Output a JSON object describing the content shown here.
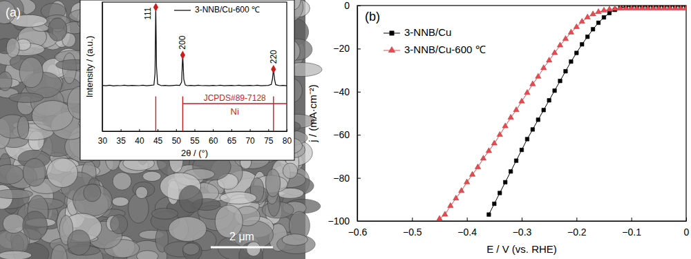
{
  "chart_data": [
    {
      "type": "line",
      "annotations": [
        "(a)",
        "2 μm"
      ],
      "x_label": "2θ / (°)",
      "y_label": "Intensity / (a.u.)",
      "x": [
        30,
        31,
        32,
        33,
        34,
        35,
        36,
        37,
        38,
        39,
        40,
        41,
        42,
        43,
        44,
        44.3,
        44.5,
        44.7,
        45,
        46,
        47,
        48,
        49,
        50,
        51,
        51.5,
        51.8,
        52.1,
        52.5,
        53,
        54,
        55,
        56,
        57,
        58,
        59,
        60,
        61,
        62,
        63,
        64,
        65,
        66,
        67,
        68,
        69,
        70,
        71,
        72,
        73,
        74,
        75,
        75.8,
        76.1,
        76.4,
        76.7,
        77,
        78,
        79,
        80
      ],
      "series": [
        {
          "name": "3-NNB/Cu-600 ℃",
          "color": "#000000",
          "line_style": "solid",
          "values": [
            35.5,
            35.2,
            35.6,
            35.1,
            35.4,
            35.3,
            35.6,
            35.2,
            35.5,
            35.4,
            35.3,
            35.6,
            35.2,
            35.5,
            35.8,
            45,
            96,
            50,
            36.5,
            35.3,
            35.5,
            35.2,
            35.4,
            35.6,
            35.5,
            38,
            59,
            40,
            35.8,
            35.3,
            35.5,
            35.2,
            35.6,
            35.3,
            35.4,
            35.2,
            35.5,
            35.3,
            35.6,
            35.2,
            35.4,
            35.5,
            35.3,
            35.6,
            35.2,
            35.4,
            35.5,
            35.3,
            35.6,
            35.2,
            35.4,
            35.5,
            36.2,
            40,
            48,
            40,
            36,
            35.3,
            35.5,
            35.2
          ]
        }
      ],
      "xlim": [
        30,
        80
      ],
      "xticks": [
        30,
        35,
        40,
        45,
        50,
        55,
        60,
        65,
        70,
        75,
        80
      ],
      "ylim": [
        0,
        100
      ],
      "tick_labels": "x",
      "grid": false,
      "legend": "upper right",
      "peaks": {
        "x": [
          44.5,
          51.8,
          76.4
        ],
        "values": [
          96,
          59,
          48
        ],
        "labels": [
          "111",
          "200",
          "220"
        ],
        "color": "#c81e1e",
        "marker": "diamond"
      },
      "reference": {
        "name": "JCPDS#89-7128",
        "label": "Ni",
        "x": [
          44.5,
          51.8,
          76.4
        ],
        "values": [
          27,
          27,
          27
        ],
        "color": "#c81e1e"
      }
    },
    {
      "type": "line",
      "annotations": [
        "(b)"
      ],
      "x_label": "E / V (vs. RHE)",
      "y_label": "j / (mA·cm⁻²)",
      "x": [
        -0.45,
        -0.44,
        -0.43,
        -0.42,
        -0.41,
        -0.4,
        -0.39,
        -0.38,
        -0.37,
        -0.36,
        -0.35,
        -0.34,
        -0.33,
        -0.32,
        -0.31,
        -0.3,
        -0.29,
        -0.28,
        -0.27,
        -0.26,
        -0.25,
        -0.24,
        -0.23,
        -0.22,
        -0.21,
        -0.2,
        -0.19,
        -0.18,
        -0.17,
        -0.16,
        -0.15,
        -0.14,
        -0.13,
        -0.12,
        -0.11,
        -0.1,
        -0.09,
        -0.08,
        -0.07,
        -0.06,
        -0.05,
        -0.04,
        -0.03,
        -0.02,
        -0.01,
        0
      ],
      "series": [
        {
          "name": "3-NNB/Cu",
          "color": "#000000",
          "marker": "square",
          "line_style": "solid",
          "values": [
            null,
            null,
            null,
            null,
            null,
            null,
            null,
            null,
            null,
            -97,
            -92,
            -87,
            -82,
            -77,
            -72,
            -67,
            -62,
            -57.5,
            -53,
            -48.5,
            -44,
            -39.5,
            -35,
            -30.5,
            -26,
            -22,
            -18,
            -14.5,
            -11,
            -8,
            -5.5,
            -3.5,
            -2,
            -1,
            -0.5,
            -0.3,
            -0.3,
            -0.3,
            -0.3,
            -0.3,
            -0.3,
            -0.3,
            -0.3,
            -0.3,
            -0.3,
            -0.3
          ]
        },
        {
          "name": "3-NNB/Cu-600 ℃",
          "color": "#e84a4f",
          "marker": "triangle",
          "line_style": "solid",
          "values": [
            -99,
            -97,
            -93,
            -89.5,
            -86,
            -82,
            -78.5,
            -75,
            -71,
            -67.5,
            -64,
            -60,
            -56,
            -52,
            -48.5,
            -44.5,
            -40.5,
            -36.5,
            -33,
            -29,
            -25.5,
            -22,
            -18.5,
            -15.5,
            -12.5,
            -10,
            -7.5,
            -5.5,
            -4,
            -3,
            -2.3,
            -1.8,
            -1.5,
            -1.3,
            -1.3,
            -1.3,
            -1.3,
            -1.3,
            -1.3,
            -1.3,
            -1.3,
            -1.3,
            -1.3,
            -1.3,
            -1.3,
            -1.3
          ]
        }
      ],
      "xlim": [
        -0.6,
        0
      ],
      "xticks": [
        {
          "value": -0.6,
          "label": "−0.6"
        },
        {
          "value": -0.5,
          "label": "−0.5"
        },
        {
          "value": -0.4,
          "label": "−0.4"
        },
        {
          "value": -0.3,
          "label": "−0.3"
        },
        {
          "value": -0.2,
          "label": "−0.2"
        },
        {
          "value": -0.1,
          "label": "−0.1"
        },
        0
      ],
      "ylim": [
        -100,
        0
      ],
      "yticks": [
        {
          "value": -100,
          "label": "−100"
        },
        {
          "value": -80,
          "label": "−80"
        },
        {
          "value": -60,
          "label": "−60"
        },
        {
          "value": -40,
          "label": "−40"
        },
        {
          "value": -20,
          "label": "−20"
        },
        0
      ],
      "grid": false,
      "legend": "upper left"
    }
  ]
}
